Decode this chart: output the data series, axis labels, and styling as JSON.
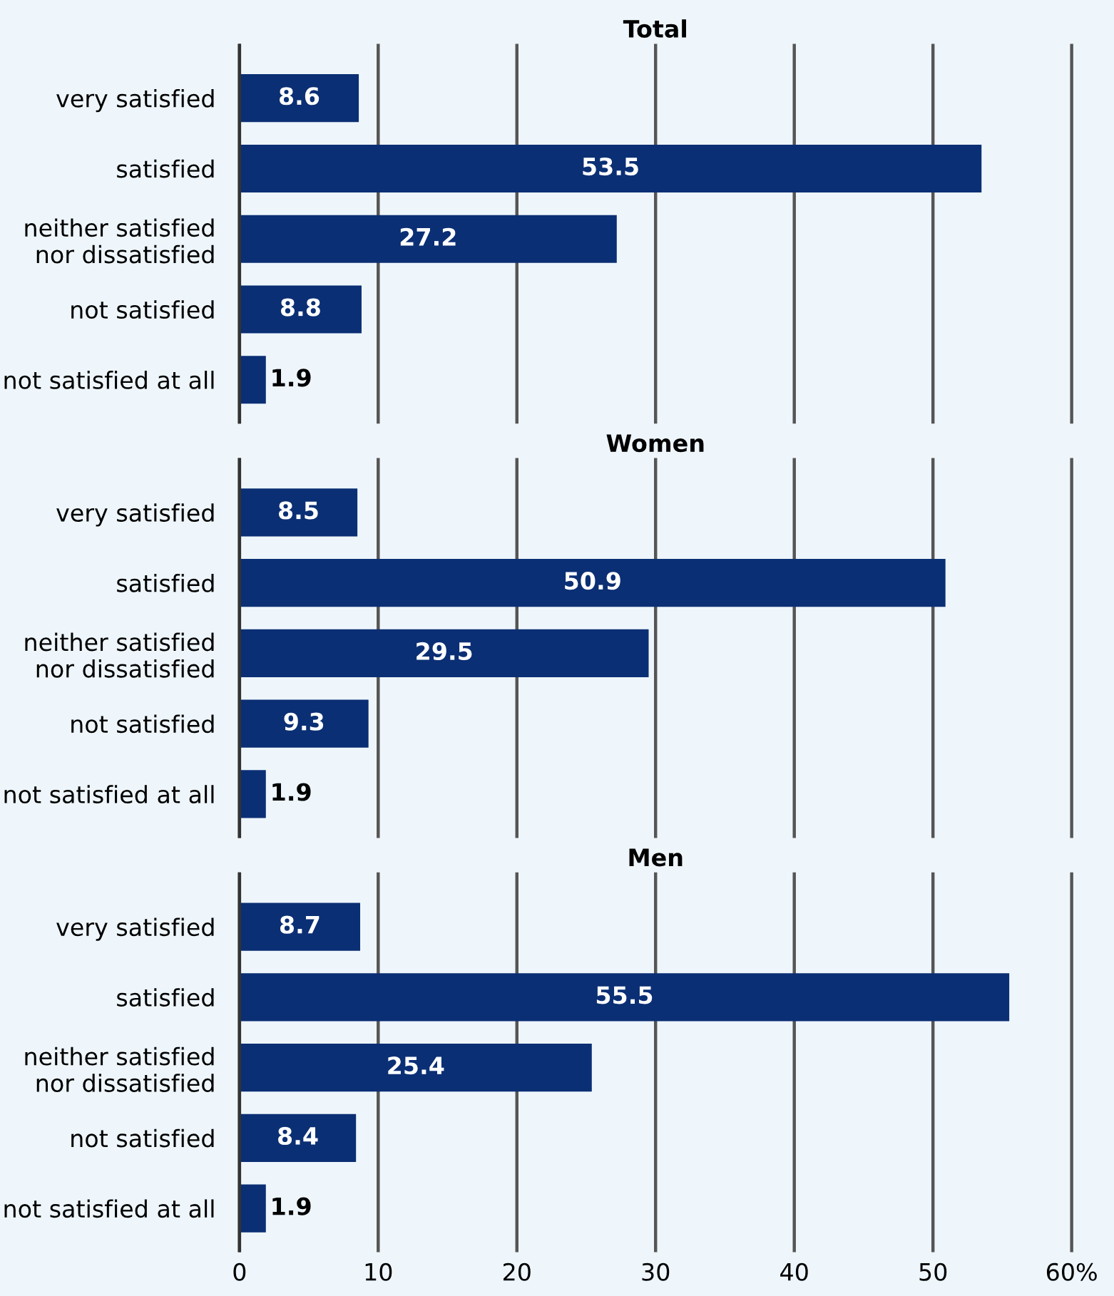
{
  "chart_data": [
    {
      "type": "bar",
      "orientation": "horizontal",
      "title": "Total",
      "categories": [
        "very satisfied",
        "satisfied",
        "neither satisfied\nnor dissatisfied",
        "not satisfied",
        "not satisfied at all"
      ],
      "values": [
        8.6,
        53.5,
        27.2,
        8.8,
        1.9
      ],
      "color": "#0b2f74",
      "xlim": [
        0,
        60
      ],
      "grid": "x",
      "data_labels": true,
      "tick_labels": "y"
    },
    {
      "type": "bar",
      "orientation": "horizontal",
      "title": "Women",
      "categories": [
        "very satisfied",
        "satisfied",
        "neither satisfied\nnor dissatisfied",
        "not satisfied",
        "not satisfied at all"
      ],
      "values": [
        8.5,
        50.9,
        29.5,
        9.3,
        1.9
      ],
      "color": "#0b2f74",
      "xlim": [
        0,
        60
      ],
      "grid": "x",
      "data_labels": true,
      "tick_labels": "y"
    },
    {
      "type": "bar",
      "orientation": "horizontal",
      "title": "Men",
      "categories": [
        "very satisfied",
        "satisfied",
        "neither satisfied\nnor dissatisfied",
        "not satisfied",
        "not satisfied at all"
      ],
      "values": [
        8.7,
        55.5,
        25.4,
        8.4,
        1.9
      ],
      "color": "#0b2f74",
      "xlim": [
        0,
        60
      ],
      "xticks": [
        0,
        10,
        20,
        30,
        40,
        50,
        {
          "value": 60,
          "label": "60%"
        }
      ],
      "grid": "x",
      "data_labels": true
    }
  ]
}
